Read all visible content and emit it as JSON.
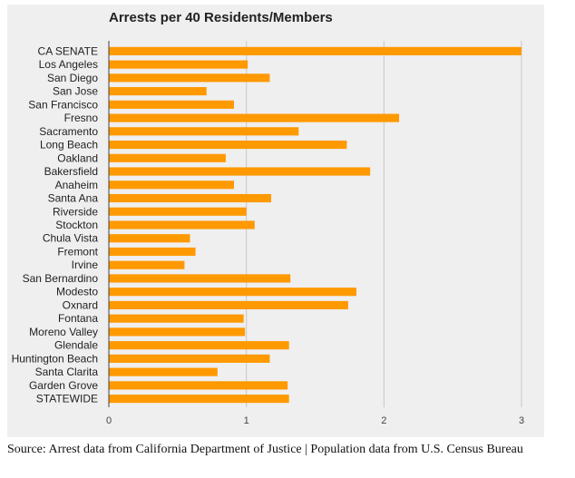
{
  "chart_data": {
    "type": "bar",
    "orientation": "horizontal",
    "title": "Arrests per 40 Residents/Members",
    "xlabel": "",
    "ylabel": "",
    "xlim": [
      0,
      3
    ],
    "x_ticks": [
      0,
      1,
      2,
      3
    ],
    "grid": true,
    "bar_color": "#ff9900",
    "categories": [
      "CA SENATE",
      "Los Angeles",
      "San Diego",
      "San Jose",
      "San Francisco",
      "Fresno",
      "Sacramento",
      "Long Beach",
      "Oakland",
      "Bakersfield",
      "Anaheim",
      "Santa Ana",
      "Riverside",
      "Stockton",
      "Chula Vista",
      "Fremont",
      "Irvine",
      "San Bernardino",
      "Modesto",
      "Oxnard",
      "Fontana",
      "Moreno Valley",
      "Glendale",
      "Huntington Beach",
      "Santa Clarita",
      "Garden Grove",
      "STATEWIDE"
    ],
    "values": [
      3.0,
      1.01,
      1.17,
      0.71,
      0.91,
      2.11,
      1.38,
      1.73,
      0.85,
      1.9,
      0.91,
      1.18,
      1.0,
      1.06,
      0.59,
      0.63,
      0.55,
      1.32,
      1.8,
      1.74,
      0.98,
      0.99,
      1.31,
      1.17,
      0.79,
      1.3,
      1.31
    ]
  },
  "source_note": "Source: Arrest data from California Department of Justice | Population data from U.S. Census Bureau"
}
